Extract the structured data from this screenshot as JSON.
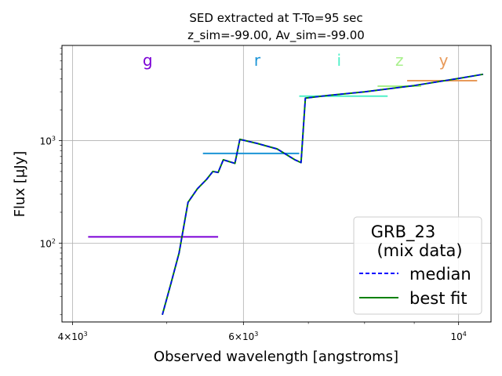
{
  "chart_data": {
    "type": "line",
    "title_line1": "SED extracted at T-To=95 sec",
    "title_line2": "z_sim=-99.00, Av_sim=-99.00",
    "xlabel": "Observed wavelength [angstroms]",
    "ylabel": "Flux [μJy]",
    "xscale": "log",
    "yscale": "log",
    "xlim": [
      3900,
      10800
    ],
    "ylim": [
      17,
      8500
    ],
    "grid": true,
    "x_ticks": [
      {
        "value": 4000,
        "base": "4×10",
        "exp": "3"
      },
      {
        "value": 6000,
        "base": "6×10",
        "exp": "3"
      },
      {
        "value": 10000,
        "base": "10",
        "exp": "4"
      }
    ],
    "x_minor_ticks": [
      5000,
      7000,
      8000,
      9000
    ],
    "y_ticks": [
      {
        "value": 100,
        "base": "10",
        "exp": "2"
      },
      {
        "value": 1000,
        "base": "10",
        "exp": "3"
      }
    ],
    "filters": [
      {
        "name": "g",
        "color": "#7b00d6",
        "x": 4780,
        "x_start": 4150,
        "x_end": 5650,
        "value": 115
      },
      {
        "name": "r",
        "color": "#1b94d6",
        "x": 6200,
        "x_start": 5450,
        "x_end": 6850,
        "value": 750
      },
      {
        "name": "i",
        "color": "#4ef0c8",
        "x": 7530,
        "x_start": 6850,
        "x_end": 8450,
        "value": 2720
      },
      {
        "name": "z",
        "color": "#a8f08c",
        "x": 8690,
        "x_start": 8250,
        "x_end": 9150,
        "value": 3400
      },
      {
        "name": "y",
        "color": "#e89a5a",
        "x": 9650,
        "x_start": 8850,
        "x_end": 10450,
        "value": 3850
      }
    ],
    "series": [
      {
        "name": "median",
        "color": "#0000ff",
        "style": "dashed",
        "x": [
          4950,
          5050,
          5150,
          5260,
          5380,
          5500,
          5580,
          5650,
          5720,
          5880,
          5950,
          6200,
          6500,
          6780,
          6880,
          6950,
          7300,
          8000,
          9000,
          10000,
          10600
        ],
        "y": [
          20,
          40,
          80,
          250,
          340,
          420,
          500,
          490,
          650,
          600,
          1030,
          940,
          830,
          650,
          610,
          2600,
          2750,
          3000,
          3450,
          4050,
          4450
        ]
      },
      {
        "name": "best fit",
        "color": "#008000",
        "style": "solid",
        "x": [
          4950,
          5050,
          5150,
          5260,
          5380,
          5500,
          5580,
          5650,
          5720,
          5880,
          5950,
          6200,
          6500,
          6780,
          6880,
          6950,
          7300,
          8000,
          9000,
          10000,
          10600
        ],
        "y": [
          20,
          40,
          80,
          250,
          340,
          420,
          500,
          490,
          650,
          600,
          1030,
          940,
          830,
          650,
          610,
          2600,
          2750,
          3000,
          3450,
          4050,
          4450
        ]
      }
    ],
    "legend": {
      "placement": "lower right",
      "title_line1": "GRB_23",
      "title_line2": "(mix data)"
    }
  }
}
